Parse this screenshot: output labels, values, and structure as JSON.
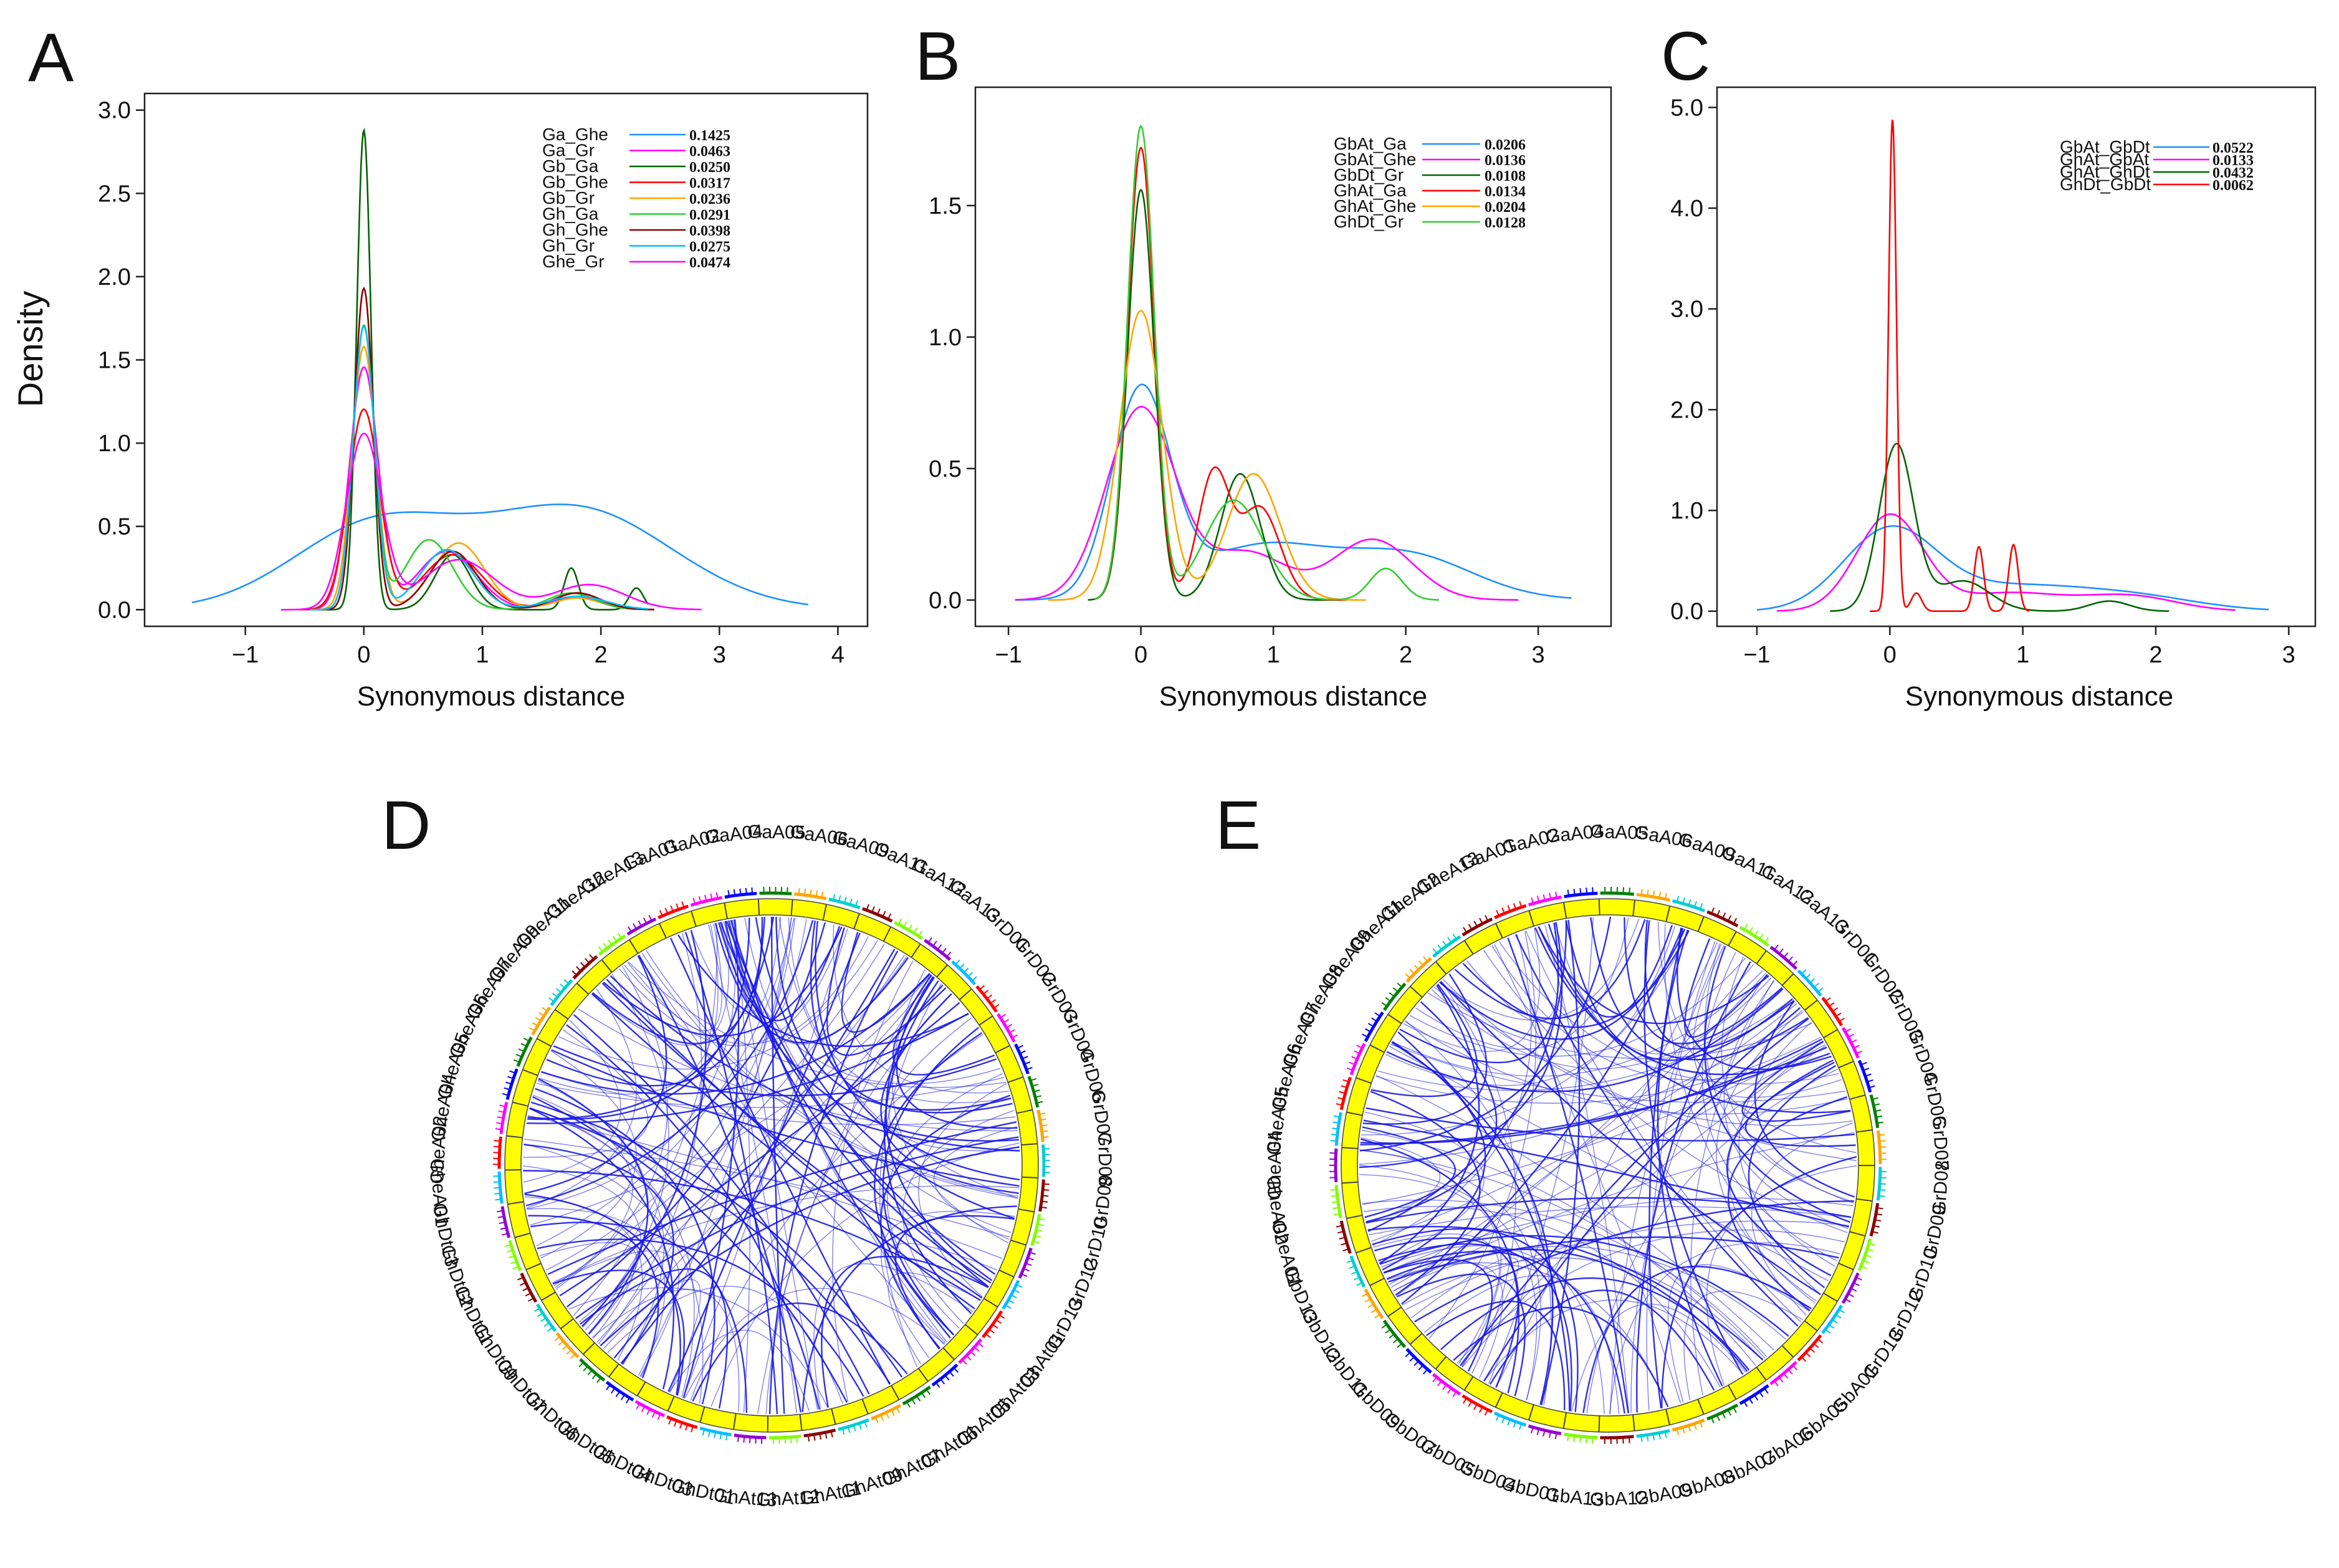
{
  "chart_data": [
    {
      "id": "A",
      "type": "line",
      "panel_label": "A",
      "xlabel": "Synonymous distance",
      "ylabel": "Density",
      "xlim": [
        -1.85,
        4.25
      ],
      "ylim": [
        -0.1,
        3.1
      ],
      "xticks": [
        -1,
        0,
        1,
        2,
        3,
        4
      ],
      "xtick_labels": [
        "−1",
        "0",
        "1",
        "2",
        "3",
        "4"
      ],
      "yticks": [
        0.0,
        0.5,
        1.0,
        1.5,
        2.0,
        2.5,
        3.0
      ],
      "ytick_labels": [
        "0.0",
        "0.5",
        "1.0",
        "1.5",
        "2.0",
        "2.5",
        "3.0"
      ],
      "legend_position": "top-right",
      "series": [
        {
          "name": "Ga_Ghe",
          "value": "0.1425",
          "color": "#1e90ff",
          "range": [
            -1.45,
            3.75
          ],
          "components": [
            [
              0.1,
              0.7,
              0.5
            ],
            [
              1.8,
              0.8,
              0.6
            ]
          ]
        },
        {
          "name": "Ga_Gr",
          "value": "0.0463",
          "color": "#ff00ff",
          "range": [
            -0.5,
            2.3
          ],
          "components": [
            [
              0,
              0.12,
              1.45
            ],
            [
              0.7,
              0.25,
              0.35
            ],
            [
              1.8,
              0.2,
              0.08
            ]
          ]
        },
        {
          "name": "Gb_Ga",
          "value": "0.0250",
          "color": "#006400",
          "range": [
            -0.35,
            2.4
          ],
          "components": [
            [
              0,
              0.06,
              2.88
            ],
            [
              0.75,
              0.15,
              0.33
            ],
            [
              1.75,
              0.06,
              0.25
            ],
            [
              2.3,
              0.06,
              0.13
            ]
          ]
        },
        {
          "name": "Gb_Ghe",
          "value": "0.0317",
          "color": "#ff0000",
          "range": [
            -0.55,
            2.45
          ],
          "components": [
            [
              0,
              0.13,
              1.2
            ],
            [
              0.75,
              0.25,
              0.33
            ],
            [
              1.8,
              0.2,
              0.1
            ]
          ]
        },
        {
          "name": "Gb_Gr",
          "value": "0.0236",
          "color": "#ffa500",
          "range": [
            -0.45,
            2.2
          ],
          "components": [
            [
              0,
              0.1,
              1.58
            ],
            [
              0.8,
              0.22,
              0.4
            ],
            [
              1.8,
              0.2,
              0.07
            ]
          ]
        },
        {
          "name": "Gh_Ga",
          "value": "0.0291",
          "color": "#32cd32",
          "range": [
            -0.4,
            2.3
          ],
          "components": [
            [
              0,
              0.09,
              1.7
            ],
            [
              0.55,
              0.2,
              0.42
            ],
            [
              1.75,
              0.2,
              0.1
            ]
          ]
        },
        {
          "name": "Gh_Ghe",
          "value": "0.0398",
          "color": "#8b0000",
          "range": [
            -0.4,
            2.45
          ],
          "components": [
            [
              0,
              0.08,
              1.93
            ],
            [
              0.75,
              0.2,
              0.35
            ],
            [
              1.8,
              0.2,
              0.1
            ]
          ]
        },
        {
          "name": "Gh_Gr",
          "value": "0.0275",
          "color": "#00bfff",
          "range": [
            -0.45,
            2.4
          ],
          "components": [
            [
              0,
              0.09,
              1.7
            ],
            [
              0.7,
              0.22,
              0.36
            ],
            [
              1.8,
              0.25,
              0.08
            ]
          ]
        },
        {
          "name": "Ghe_Gr",
          "value": "0.0474",
          "color": "#ff00ff",
          "range": [
            -0.7,
            2.85
          ],
          "components": [
            [
              0,
              0.15,
              1.05
            ],
            [
              0.8,
              0.3,
              0.3
            ],
            [
              1.9,
              0.3,
              0.15
            ]
          ]
        }
      ]
    },
    {
      "id": "B",
      "type": "line",
      "panel_label": "B",
      "xlabel": "Synonymous distance",
      "ylabel": "",
      "xlim": [
        -1.25,
        3.55
      ],
      "ylim": [
        -0.1,
        1.95
      ],
      "xticks": [
        -1,
        0,
        1,
        2,
        3
      ],
      "xtick_labels": [
        "−1",
        "0",
        "1",
        "2",
        "3"
      ],
      "yticks": [
        0.0,
        0.5,
        1.0,
        1.5
      ],
      "ytick_labels": [
        "0.0",
        "0.5",
        "1.0",
        "1.5"
      ],
      "legend_position": "top-right",
      "series": [
        {
          "name": "GbAt_Ga",
          "value": "0.0206",
          "color": "#1e90ff",
          "range": [
            -0.95,
            3.25
          ],
          "components": [
            [
              0,
              0.22,
              0.78
            ],
            [
              0.9,
              0.5,
              0.2
            ],
            [
              2,
              0.5,
              0.17
            ]
          ]
        },
        {
          "name": "GbAt_Ghe",
          "value": "0.0136",
          "color": "#ff00ff",
          "range": [
            -0.95,
            2.85
          ],
          "components": [
            [
              0,
              0.26,
              0.73
            ],
            [
              0.8,
              0.3,
              0.18
            ],
            [
              1.75,
              0.3,
              0.23
            ]
          ]
        },
        {
          "name": "GbDt_Gr",
          "value": "0.0108",
          "color": "#006400",
          "range": [
            -0.4,
            1.5
          ],
          "components": [
            [
              0,
              0.1,
              1.56
            ],
            [
              0.75,
              0.15,
              0.48
            ]
          ]
        },
        {
          "name": "GhAt_Ga",
          "value": "0.0134",
          "color": "#ff0000",
          "range": [
            -0.35,
            1.55
          ],
          "components": [
            [
              0,
              0.1,
              1.72
            ],
            [
              0.55,
              0.12,
              0.48
            ],
            [
              0.9,
              0.15,
              0.35
            ]
          ]
        },
        {
          "name": "GhAt_Ghe",
          "value": "0.0204",
          "color": "#ffa500",
          "range": [
            -0.7,
            1.7
          ],
          "components": [
            [
              0,
              0.16,
              1.1
            ],
            [
              0.85,
              0.2,
              0.48
            ]
          ]
        },
        {
          "name": "GhDt_Gr",
          "value": "0.0128",
          "color": "#32cd32",
          "range": [
            -0.35,
            2.25
          ],
          "components": [
            [
              0,
              0.1,
              1.8
            ],
            [
              0.7,
              0.22,
              0.38
            ],
            [
              1.85,
              0.12,
              0.12
            ]
          ]
        }
      ]
    },
    {
      "id": "C",
      "type": "line",
      "panel_label": "C",
      "xlabel": "Synonymous distance",
      "ylabel": "",
      "xlim": [
        -1.3,
        3.2
      ],
      "ylim": [
        -0.15,
        5.2
      ],
      "xticks": [
        -1,
        0,
        1,
        2,
        3
      ],
      "xtick_labels": [
        "−1",
        "0",
        "1",
        "2",
        "3"
      ],
      "yticks": [
        0.0,
        1.0,
        2.0,
        3.0,
        4.0,
        5.0
      ],
      "ytick_labels": [
        "0.0",
        "1.0",
        "2.0",
        "3.0",
        "4.0",
        "5.0"
      ],
      "legend_position": "top-right",
      "series": [
        {
          "name": "GbAt_GbDt",
          "value": "0.0522",
          "color": "#1e90ff",
          "range": [
            -1,
            2.85
          ],
          "components": [
            [
              0,
              0.35,
              0.8
            ],
            [
              0.9,
              0.5,
              0.22
            ],
            [
              1.8,
              0.5,
              0.15
            ]
          ]
        },
        {
          "name": "GhAt_GbAt",
          "value": "0.0133",
          "color": "#ff00ff",
          "range": [
            -0.85,
            2.6
          ],
          "components": [
            [
              0,
              0.25,
              0.95
            ],
            [
              0.9,
              0.4,
              0.18
            ],
            [
              1.8,
              0.35,
              0.15
            ]
          ]
        },
        {
          "name": "GhAt_GhDt",
          "value": "0.0432",
          "color": "#006400",
          "range": [
            -0.45,
            2.1
          ],
          "components": [
            [
              0.05,
              0.13,
              1.65
            ],
            [
              0.55,
              0.2,
              0.3
            ],
            [
              1.65,
              0.15,
              0.1
            ]
          ]
        },
        {
          "name": "GhDt_GbDt",
          "value": "0.0062",
          "color": "#ff0000",
          "range": [
            -0.15,
            1.05
          ],
          "components": [
            [
              0.02,
              0.03,
              4.88
            ],
            [
              0.2,
              0.04,
              0.18
            ],
            [
              0.67,
              0.035,
              0.64
            ],
            [
              0.93,
              0.035,
              0.66
            ]
          ]
        }
      ]
    }
  ],
  "circos": [
    {
      "panel_label": "D",
      "chromosomes": [
        "GaA01",
        "GaA02",
        "GaA04",
        "GaA05",
        "GaA06",
        "GaA09",
        "GaA11",
        "GaA12",
        "GaA13",
        "GrD01",
        "GrD02",
        "GrD03",
        "GrD04",
        "GrD06",
        "GrD07",
        "GrD08",
        "GrD09",
        "GrD10",
        "GrD12",
        "GrD13",
        "GhAt01",
        "GhAt03",
        "GhAt05",
        "GhAt06",
        "GhAt07",
        "GhAt09",
        "GhAt11",
        "GhAt12",
        "GhAt13",
        "GhDt01",
        "GhDt03",
        "GhDt04",
        "GhDt05",
        "GhDt06",
        "GhDt07",
        "GhDt09",
        "GhDt11",
        "GhDt12",
        "GhDt13",
        "GheA01",
        "GheA02",
        "GheA04",
        "GheA05",
        "GheA06",
        "GheA07",
        "GheA09",
        "GheA11",
        "GheA12",
        "GheA13"
      ],
      "track_colors": [
        "#ff0000",
        "#ff00ff",
        "#0000ff",
        "#008000",
        "#ffa500",
        "#00ced1",
        "#8b0000",
        "#7fff00",
        "#9400d3",
        "#00bfff"
      ],
      "link_color": "#1a1ae6"
    },
    {
      "panel_label": "E",
      "chromosomes": [
        "GaA01",
        "GaA02",
        "GaA04",
        "GaA05",
        "GaA06",
        "GaA09",
        "GaA11",
        "GaA12",
        "GaA13",
        "GrD01",
        "GrD02",
        "GrD03",
        "GrD04",
        "GrD06",
        "GrD07",
        "GrD08",
        "GrD09",
        "GrD10",
        "GrD12",
        "GrD13",
        "GbA01",
        "GbA05",
        "GbA06",
        "GbA07",
        "GbA08",
        "GbA09",
        "GbA12",
        "GbA13",
        "GbD01",
        "GbD04",
        "GbD05",
        "GbD07",
        "GbD09",
        "GbD11",
        "GbD12",
        "GbD13",
        "GheA01",
        "GheA02",
        "GheA04",
        "GheA05",
        "GheA06",
        "GheA07",
        "GheA08",
        "GheA09",
        "GheA11",
        "GheA12",
        "GheA13"
      ],
      "track_colors": [
        "#ff0000",
        "#ff00ff",
        "#0000ff",
        "#008000",
        "#ffa500",
        "#00ced1",
        "#8b0000",
        "#7fff00",
        "#9400d3",
        "#00bfff"
      ],
      "link_color": "#1a1ae6"
    }
  ]
}
